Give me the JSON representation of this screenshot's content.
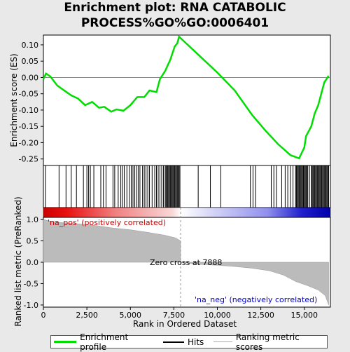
{
  "chart_data": {
    "type": "line",
    "title": "Enrichment plot: RNA CATABOLIC PROCESS%GO%GO:0006401",
    "ylabel": "Enrichment score (ES)",
    "ylim": [
      -0.27,
      0.13
    ],
    "yticks": [
      0.1,
      0.05,
      0.0,
      -0.05,
      -0.1,
      -0.15,
      -0.2,
      -0.25
    ],
    "ytick_labels": [
      "0.10",
      "0.05",
      "0.00",
      "-0.05",
      "-0.10",
      "-0.15",
      "-0.20",
      "-0.25"
    ],
    "xlim": [
      0,
      16500
    ],
    "xlabel": "Rank in Ordered Dataset",
    "xticks": [
      0,
      2500,
      5000,
      7500,
      10000,
      12500,
      15000
    ],
    "xtick_labels": [
      "0",
      "2,500",
      "5,000",
      "7,500",
      "10,000",
      "12,500",
      "15,000"
    ],
    "enrichment_profile": [
      [
        0,
        -0.005
      ],
      [
        150,
        0.012
      ],
      [
        400,
        0.003
      ],
      [
        800,
        -0.025
      ],
      [
        1200,
        -0.04
      ],
      [
        1600,
        -0.055
      ],
      [
        2000,
        -0.065
      ],
      [
        2400,
        -0.085
      ],
      [
        2800,
        -0.075
      ],
      [
        3200,
        -0.093
      ],
      [
        3500,
        -0.09
      ],
      [
        3900,
        -0.105
      ],
      [
        4200,
        -0.098
      ],
      [
        4600,
        -0.102
      ],
      [
        5000,
        -0.085
      ],
      [
        5400,
        -0.06
      ],
      [
        5800,
        -0.06
      ],
      [
        6100,
        -0.04
      ],
      [
        6500,
        -0.045
      ],
      [
        6700,
        -0.005
      ],
      [
        7000,
        0.02
      ],
      [
        7300,
        0.055
      ],
      [
        7550,
        0.095
      ],
      [
        7700,
        0.105
      ],
      [
        7800,
        0.125
      ],
      [
        8200,
        0.105
      ],
      [
        9000,
        0.065
      ],
      [
        10000,
        0.015
      ],
      [
        11000,
        -0.04
      ],
      [
        12000,
        -0.115
      ],
      [
        12800,
        -0.165
      ],
      [
        13500,
        -0.205
      ],
      [
        14200,
        -0.238
      ],
      [
        14700,
        -0.248
      ],
      [
        15000,
        -0.215
      ],
      [
        15100,
        -0.18
      ],
      [
        15400,
        -0.15
      ],
      [
        15600,
        -0.11
      ],
      [
        15800,
        -0.085
      ],
      [
        16000,
        -0.045
      ],
      [
        16150,
        -0.015
      ],
      [
        16400,
        0.005
      ]
    ],
    "hits": [
      120,
      900,
      1300,
      1600,
      1900,
      2300,
      2500,
      2600,
      2700,
      2900,
      3300,
      3450,
      3600,
      4000,
      4100,
      4300,
      4450,
      4550,
      4650,
      4800,
      4950,
      5050,
      5150,
      5250,
      5350,
      5450,
      5550,
      5700,
      5800,
      5900,
      6000,
      6100,
      6250,
      6400,
      6500,
      6600,
      6700,
      6800,
      6900,
      7000,
      7050,
      7100,
      7150,
      7200,
      7250,
      7300,
      7350,
      7400,
      7450,
      7500,
      7550,
      7600,
      7650,
      7700,
      7750,
      7800,
      7850,
      8900,
      9600,
      10200,
      11900,
      12050,
      12200,
      13100,
      13250,
      13400,
      13700,
      13900,
      14050,
      14200,
      14350,
      14500,
      14550,
      14600,
      14650,
      14700,
      14750,
      14800,
      14850,
      14900,
      14950,
      15000,
      15050,
      15100,
      15150,
      15200,
      15300,
      15400,
      15450,
      15500,
      15550,
      15600,
      15650,
      15700,
      15750,
      15800,
      15850,
      15900,
      15950,
      16000,
      16050,
      16100,
      16150,
      16200,
      16250,
      16300,
      16350,
      16400
    ],
    "ranked_metric": {
      "ylabel": "Ranked list metric (PreRanked)",
      "ylim": [
        -1.05,
        1.05
      ],
      "yticks": [
        1.0,
        0.5,
        0.0,
        -0.5,
        -1.0
      ],
      "ytick_labels": [
        "1.0",
        "0.5",
        "0.0",
        "-0.5",
        "-1.0"
      ],
      "values": [
        [
          0,
          1.0
        ],
        [
          300,
          0.97
        ],
        [
          1000,
          0.93
        ],
        [
          2000,
          0.9
        ],
        [
          3000,
          0.86
        ],
        [
          4000,
          0.8
        ],
        [
          5000,
          0.76
        ],
        [
          6000,
          0.7
        ],
        [
          7000,
          0.63
        ],
        [
          7600,
          0.57
        ],
        [
          7888,
          0.5
        ],
        [
          7889,
          0.0
        ],
        [
          9000,
          -0.05
        ],
        [
          10000,
          -0.07
        ],
        [
          11000,
          -0.1
        ],
        [
          12000,
          -0.14
        ],
        [
          13000,
          -0.2
        ],
        [
          13800,
          -0.3
        ],
        [
          14500,
          -0.45
        ],
        [
          15200,
          -0.55
        ],
        [
          15800,
          -0.65
        ],
        [
          16200,
          -0.78
        ],
        [
          16400,
          -1.0
        ]
      ],
      "pos_label": "'na_pos' (positively correlated)",
      "neg_label": "'na_neg' (negatively correlated)",
      "zero_cross_label": "Zero cross at 7888",
      "zero_cross": 7888
    },
    "legend": [
      "Enrichment profile",
      "Hits",
      "Ranking metric scores"
    ],
    "colors": {
      "profile": "#00dd00",
      "hits": "#000000",
      "metric": "#bbbbbb",
      "pos_label": "#cc0000",
      "neg_label": "#0000cc"
    }
  }
}
